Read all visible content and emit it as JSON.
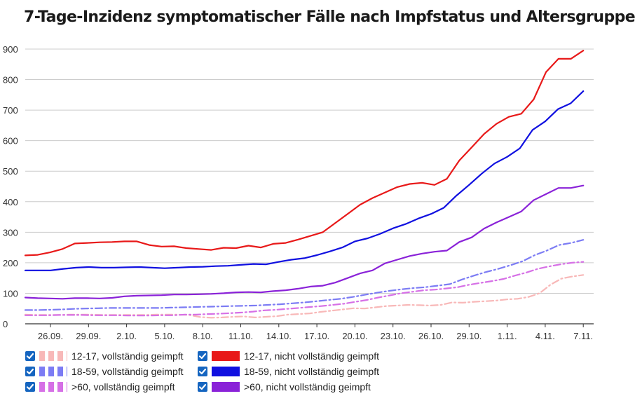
{
  "title": "7-Tage-Inzidenz symptomatischer Fälle nach Impfstatus und Altersgruppe",
  "chart_data": {
    "type": "line",
    "title": "7-Tage-Inzidenz symptomatischer Fälle nach Impfstatus und Altersgruppe",
    "xlabel": "",
    "ylabel": "",
    "ylim": [
      0,
      900
    ],
    "yticks": [
      "0",
      "100",
      "200",
      "300",
      "400",
      "500",
      "600",
      "700",
      "800",
      "900"
    ],
    "xticks": [
      "26.09.",
      "29.09.",
      "2.10.",
      "5.10.",
      "8.10.",
      "11.10.",
      "14.10.",
      "17.10.",
      "20.10.",
      "23.10.",
      "26.10.",
      "29.10.",
      "1.11.",
      "4.11.",
      "7.11."
    ],
    "x_start": "22.09.",
    "x_end": "7.11.",
    "grid": "horizontal",
    "legend_position": "bottom",
    "series": [
      {
        "name": "12-17, vollständig geimpft",
        "color": "#f8b8b8",
        "style": "dash-dot",
        "values": [
          30,
          29,
          29,
          29,
          30,
          30,
          30,
          29,
          29,
          29,
          29,
          29,
          30,
          30,
          30,
          29,
          22,
          20,
          21,
          23,
          24,
          21,
          23,
          25,
          30,
          32,
          34,
          39,
          43,
          47,
          51,
          50,
          54,
          58,
          60,
          62,
          61,
          60,
          62,
          70,
          69,
          72,
          74,
          76,
          80,
          82,
          88,
          100,
          128,
          148,
          155,
          160
        ]
      },
      {
        "name": "12-17, nicht vollständig geimpft",
        "color": "#e81919",
        "style": "solid",
        "values": [
          224,
          226,
          234,
          245,
          263,
          265,
          267,
          268,
          270,
          270,
          258,
          253,
          254,
          248,
          245,
          242,
          249,
          248,
          256,
          250,
          262,
          265,
          276,
          288,
          300,
          330,
          360,
          390,
          412,
          430,
          448,
          458,
          462,
          455,
          475,
          535,
          578,
          622,
          655,
          678,
          688,
          735,
          825,
          868,
          868,
          895
        ]
      },
      {
        "name": "18-59, vollständig geimpft",
        "color": "#7c7cf4",
        "style": "dash-dot",
        "values": [
          45,
          45,
          46,
          47,
          49,
          50,
          51,
          52,
          52,
          52,
          52,
          52,
          53,
          54,
          55,
          56,
          57,
          58,
          59,
          60,
          62,
          64,
          67,
          70,
          74,
          78,
          82,
          88,
          95,
          102,
          108,
          113,
          117,
          120,
          125,
          130,
          145,
          158,
          170,
          180,
          192,
          205,
          225,
          240,
          258,
          265,
          275
        ]
      },
      {
        "name": "18-59, nicht vollständig geimpft",
        "color": "#1010e0",
        "style": "solid",
        "values": [
          175,
          175,
          175,
          180,
          184,
          186,
          184,
          184,
          185,
          186,
          184,
          182,
          184,
          186,
          187,
          189,
          190,
          193,
          196,
          195,
          203,
          210,
          215,
          225,
          237,
          250,
          270,
          280,
          295,
          313,
          327,
          345,
          360,
          380,
          420,
          455,
          492,
          525,
          547,
          575,
          635,
          663,
          703,
          722,
          762
        ]
      },
      {
        "name": ">60, vollständig geimpft",
        "color": "#d670e6",
        "style": "dash-dot",
        "values": [
          28,
          28,
          28,
          29,
          29,
          29,
          28,
          28,
          28,
          27,
          27,
          27,
          28,
          28,
          30,
          30,
          32,
          33,
          35,
          37,
          40,
          44,
          46,
          49,
          52,
          55,
          58,
          62,
          66,
          72,
          78,
          86,
          93,
          100,
          105,
          110,
          112,
          116,
          120,
          128,
          134,
          140,
          147,
          158,
          168,
          180,
          188,
          195,
          200,
          203
        ]
      },
      {
        "name": ">60, nicht vollständig geimpft",
        "color": "#8a22d8",
        "style": "solid",
        "values": [
          86,
          84,
          83,
          82,
          84,
          84,
          83,
          85,
          90,
          92,
          93,
          94,
          96,
          96,
          97,
          98,
          100,
          103,
          104,
          103,
          107,
          110,
          115,
          122,
          125,
          135,
          150,
          165,
          175,
          198,
          210,
          222,
          230,
          236,
          240,
          268,
          283,
          312,
          332,
          350,
          368,
          405,
          425,
          445,
          445,
          453
        ]
      }
    ]
  },
  "legend": {
    "items": [
      {
        "label": "12-17, vollständig geimpft",
        "color": "#f8b8b8",
        "style": "dashed"
      },
      {
        "label": "12-17, nicht vollständig geimpft",
        "color": "#e81919",
        "style": "solid"
      },
      {
        "label": "18-59, vollständig geimpft",
        "color": "#7c7cf4",
        "style": "dashed"
      },
      {
        "label": "18-59, nicht vollständig geimpft",
        "color": "#1010e0",
        "style": "solid"
      },
      {
        "label": ">60, vollständig geimpft",
        "color": "#d670e6",
        "style": "dashed"
      },
      {
        "label": ">60, nicht vollständig geimpft",
        "color": "#8a22d8",
        "style": "solid"
      }
    ]
  },
  "colors": {
    "checkbox": "#1565c0",
    "grid": "#cccccc",
    "axis": "#333333"
  },
  "icons": {
    "checkbox": "checkmark-icon"
  }
}
